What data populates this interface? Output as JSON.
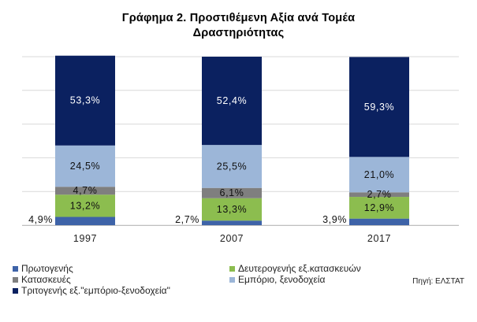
{
  "chart_data": {
    "type": "bar",
    "stacked": true,
    "title": "Γράφημα 2. Προστιθέμενη Αξία ανά Τομέα Δραστηριότητας",
    "title_lines": [
      "Γράφημα 2. Προστιθέμενη Αξία ανά Τομέα",
      "Δραστηριότητας"
    ],
    "xlabel": "",
    "ylabel": "",
    "ylim": [
      0,
      100
    ],
    "grid": true,
    "legend_position": "bottom",
    "categories": [
      "1997",
      "2007",
      "2017"
    ],
    "series": [
      {
        "name": "Πρωτογενής",
        "color": "#3E63A8",
        "values": [
          4.9,
          2.7,
          3.9
        ],
        "labels": [
          "4,9%",
          "2,7%",
          "3,9%"
        ]
      },
      {
        "name": "Δευτερογενής εξ.κατασκευών",
        "color": "#8CBD4F",
        "values": [
          13.2,
          13.3,
          12.9
        ],
        "labels": [
          "13,2%",
          "13,3%",
          "12,9%"
        ]
      },
      {
        "name": "Κατασκευές",
        "color": "#7F7F7F",
        "values": [
          4.7,
          6.1,
          2.7
        ],
        "labels": [
          "4,7%",
          "6,1%",
          "2,7%"
        ]
      },
      {
        "name": "Εμπόριο, ξενοδοχεία",
        "color": "#9CB6D8",
        "values": [
          24.5,
          25.5,
          21.0
        ],
        "labels": [
          "24,5%",
          "25,5%",
          "21,0%"
        ]
      },
      {
        "name": "Τριτογενής εξ.\"εμπόριο-ξενοδοχεία\"",
        "color": "#0B2160",
        "values": [
          53.3,
          52.4,
          59.3
        ],
        "labels": [
          "53,3%",
          "52,4%",
          "59,3%"
        ]
      }
    ]
  },
  "source": "Πηγή: ΕΛΣΤΑΤ"
}
